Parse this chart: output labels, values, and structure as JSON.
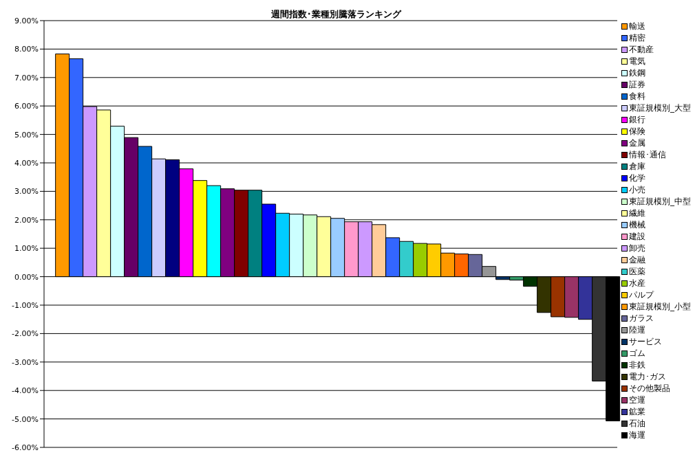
{
  "chart_data": {
    "type": "bar",
    "title": "週間指数･業種別騰落ランキング",
    "categories": [
      null
    ],
    "series": [
      {
        "name": "輸送",
        "color": "#ff9900",
        "values": [
          7.83
        ]
      },
      {
        "name": "精密",
        "color": "#3366ff",
        "values": [
          7.66
        ]
      },
      {
        "name": "不動産",
        "color": "#cc99ff",
        "values": [
          5.98
        ]
      },
      {
        "name": "電気",
        "color": "#ffff99",
        "values": [
          5.86
        ]
      },
      {
        "name": "鉄鋼",
        "color": "#ccffff",
        "values": [
          5.29
        ]
      },
      {
        "name": "証券",
        "color": "#660066",
        "values": [
          4.89
        ]
      },
      {
        "name": "食料",
        "color": "#0066cc",
        "values": [
          4.58
        ]
      },
      {
        "name": "東証規模別_大型",
        "color": "#ccccff",
        "values": [
          4.14
        ]
      },
      {
        "color": "#000080",
        "values": [
          4.11
        ]
      },
      {
        "name": "銀行",
        "color": "#ff00ff",
        "values": [
          3.79
        ]
      },
      {
        "name": "保険",
        "color": "#ffff00",
        "values": [
          3.38
        ]
      },
      {
        "color": "#00ffff",
        "values": [
          3.2
        ]
      },
      {
        "name": "金属",
        "color": "#800080",
        "values": [
          3.09
        ]
      },
      {
        "name": "情報･通信",
        "color": "#800000",
        "values": [
          3.04
        ]
      },
      {
        "name": "倉庫",
        "color": "#008080",
        "values": [
          3.04
        ]
      },
      {
        "name": "化学",
        "color": "#0000ff",
        "values": [
          2.55
        ]
      },
      {
        "name": "小売",
        "color": "#00ccff",
        "values": [
          2.23
        ]
      },
      {
        "color": "#ccffff",
        "values": [
          2.2
        ]
      },
      {
        "name": "東証規模別_中型",
        "color": "#ccffcc",
        "values": [
          2.17
        ]
      },
      {
        "name": "繊維",
        "color": "#ffff99",
        "values": [
          2.11
        ]
      },
      {
        "name": "機械",
        "color": "#99ccff",
        "values": [
          2.05
        ]
      },
      {
        "name": "建設",
        "color": "#ff99cc",
        "values": [
          1.93
        ]
      },
      {
        "name": "卸売",
        "color": "#cc99ff",
        "values": [
          1.93
        ]
      },
      {
        "name": "金融",
        "color": "#ffcc99",
        "values": [
          1.83
        ]
      },
      {
        "color": "#3366ff",
        "values": [
          1.37
        ]
      },
      {
        "name": "医薬",
        "color": "#33cccc",
        "values": [
          1.24
        ]
      },
      {
        "name": "水産",
        "color": "#99cc00",
        "values": [
          1.17
        ]
      },
      {
        "name": "パルプ",
        "color": "#ffcc00",
        "values": [
          1.15
        ]
      },
      {
        "name": "東証規模別_小型",
        "color": "#ff9900",
        "values": [
          0.83
        ]
      },
      {
        "color": "#ff6600",
        "values": [
          0.8
        ]
      },
      {
        "name": "ガラス",
        "color": "#666699",
        "values": [
          0.78
        ]
      },
      {
        "name": "陸運",
        "color": "#969696",
        "values": [
          0.36
        ]
      },
      {
        "name": "サービス",
        "color": "#003366",
        "values": [
          -0.1
        ]
      },
      {
        "name": "ゴム",
        "color": "#339966",
        "values": [
          -0.12
        ]
      },
      {
        "name": "非鉄",
        "color": "#003300",
        "values": [
          -0.34
        ]
      },
      {
        "name": "電力･ガス",
        "color": "#333300",
        "values": [
          -1.26
        ]
      },
      {
        "name": "その他製品",
        "color": "#993300",
        "values": [
          -1.41
        ]
      },
      {
        "name": "空運",
        "color": "#993366",
        "values": [
          -1.43
        ]
      },
      {
        "name": "鉱業",
        "color": "#333399",
        "values": [
          -1.5
        ]
      },
      {
        "name": "石油",
        "color": "#333333",
        "values": [
          -3.67
        ]
      },
      {
        "name": "海運",
        "color": "#000000",
        "values": [
          -5.07
        ]
      }
    ],
    "ylim": [
      -6,
      9
    ],
    "yticks": [
      {
        "value": -6,
        "label": "-6.00%"
      },
      {
        "value": -5,
        "label": "-5.00%"
      },
      {
        "value": -4,
        "label": "-4.00%"
      },
      {
        "value": -3,
        "label": "-3.00%"
      },
      {
        "value": -2,
        "label": "-2.00%"
      },
      {
        "value": -1,
        "label": "-1.00%"
      },
      {
        "value": 0,
        "label": "0.00%"
      },
      {
        "value": 1,
        "label": "1.00%"
      },
      {
        "value": 2,
        "label": "2.00%"
      },
      {
        "value": 3,
        "label": "3.00%"
      },
      {
        "value": 4,
        "label": "4.00%"
      },
      {
        "value": 5,
        "label": "5.00%"
      },
      {
        "value": 6,
        "label": "6.00%"
      },
      {
        "value": 7,
        "label": "7.00%"
      },
      {
        "value": 8,
        "label": "8.00%"
      },
      {
        "value": 9,
        "label": "9.00%"
      }
    ],
    "grid": "y",
    "legend": "right"
  }
}
